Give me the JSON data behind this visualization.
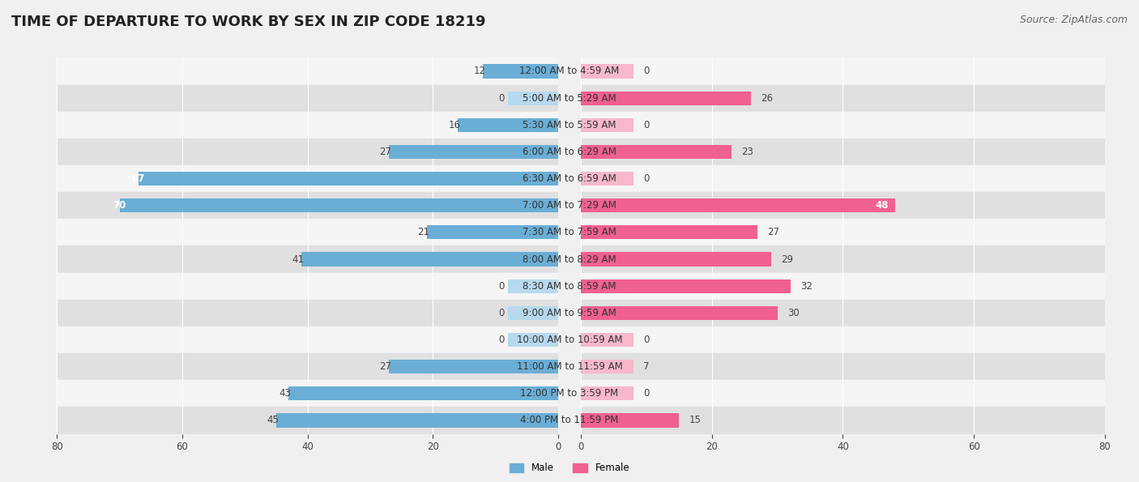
{
  "title": "TIME OF DEPARTURE TO WORK BY SEX IN ZIP CODE 18219",
  "source": "Source: ZipAtlas.com",
  "categories": [
    "12:00 AM to 4:59 AM",
    "5:00 AM to 5:29 AM",
    "5:30 AM to 5:59 AM",
    "6:00 AM to 6:29 AM",
    "6:30 AM to 6:59 AM",
    "7:00 AM to 7:29 AM",
    "7:30 AM to 7:59 AM",
    "8:00 AM to 8:29 AM",
    "8:30 AM to 8:59 AM",
    "9:00 AM to 9:59 AM",
    "10:00 AM to 10:59 AM",
    "11:00 AM to 11:59 AM",
    "12:00 PM to 3:59 PM",
    "4:00 PM to 11:59 PM"
  ],
  "male": [
    12,
    0,
    16,
    27,
    67,
    70,
    21,
    41,
    0,
    0,
    0,
    27,
    43,
    45
  ],
  "female": [
    0,
    26,
    0,
    23,
    0,
    48,
    27,
    29,
    32,
    30,
    0,
    7,
    0,
    15
  ],
  "male_color": "#6aaed6",
  "male_color_light": "#b8d9ed",
  "female_color": "#f06090",
  "female_color_light": "#f7b8cc",
  "male_label": "Male",
  "female_label": "Female",
  "bar_height": 0.52,
  "xlim": 80,
  "min_bar": 8,
  "bg_color": "#f0f0f0",
  "row_light_color": "#f5f5f5",
  "row_dark_color": "#e0e0e0",
  "title_fontsize": 13,
  "source_fontsize": 9,
  "label_fontsize": 8.5,
  "tick_fontsize": 8.5,
  "cat_fontsize": 8.5
}
